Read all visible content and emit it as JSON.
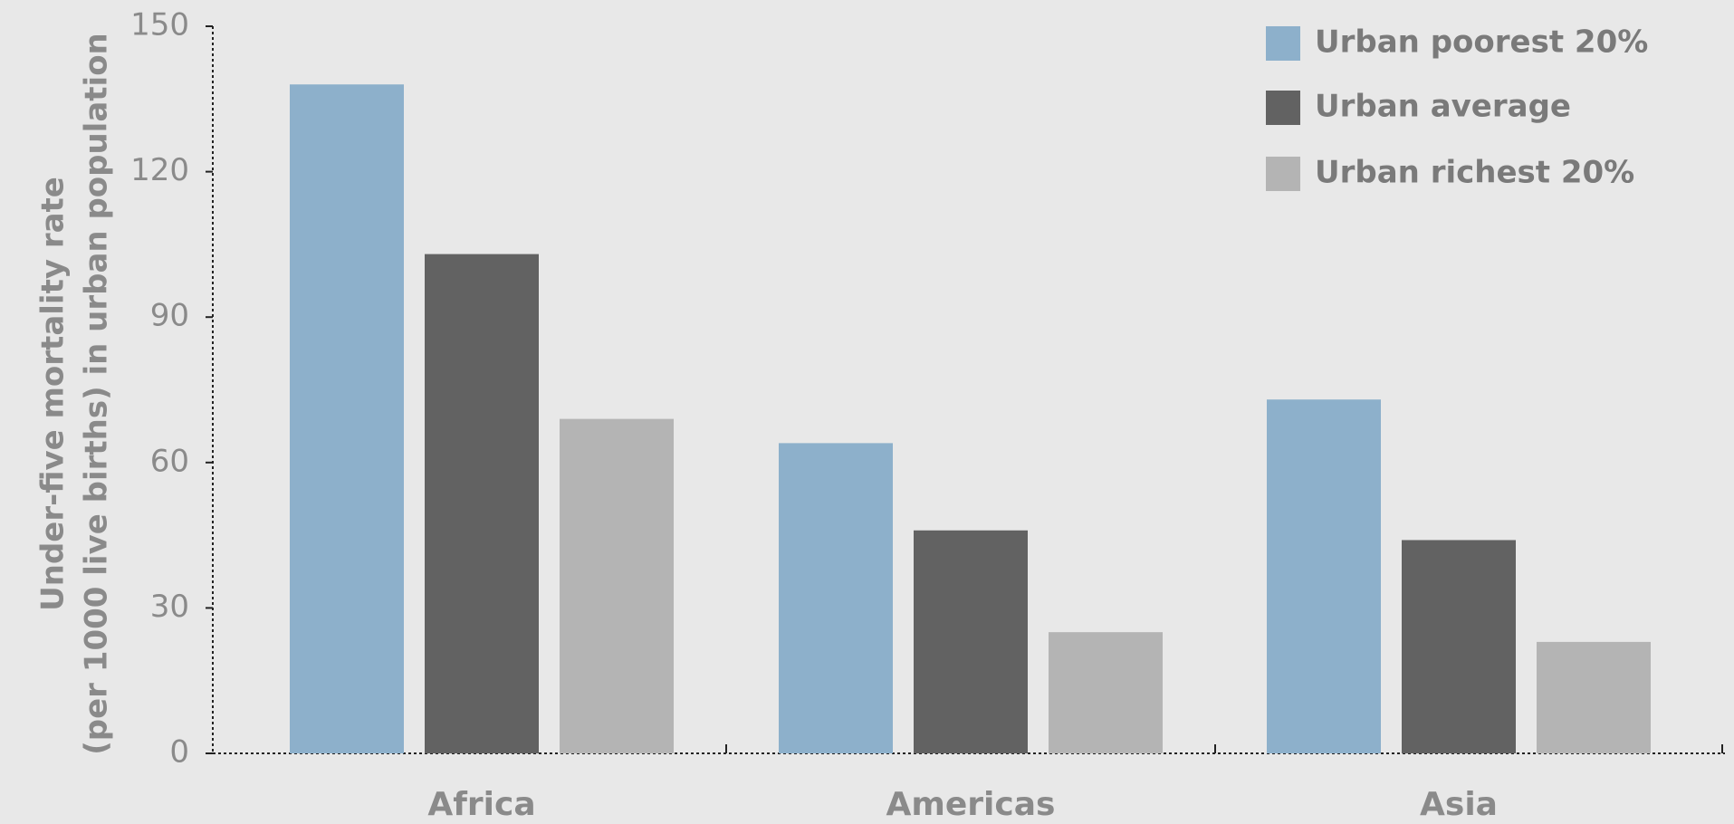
{
  "chart_data": {
    "type": "bar",
    "title": "",
    "xlabel": "",
    "ylabel_lines": [
      "Under-five mortality rate",
      "(per 1000 live births) in urban population"
    ],
    "ylim": [
      0,
      150
    ],
    "yticks": [
      0,
      30,
      60,
      90,
      120,
      150
    ],
    "grid": false,
    "legend_position": "top-right",
    "categories": [
      "Africa",
      "Americas",
      "Asia"
    ],
    "series": [
      {
        "name": "Urban poorest 20%",
        "color": "#8db0cb",
        "values": [
          138,
          64,
          73
        ]
      },
      {
        "name": "Urban average",
        "color": "#626262",
        "values": [
          103,
          46,
          44
        ]
      },
      {
        "name": "Urban richest 20%",
        "color": "#b4b4b4",
        "values": [
          69,
          25,
          23
        ]
      }
    ]
  }
}
